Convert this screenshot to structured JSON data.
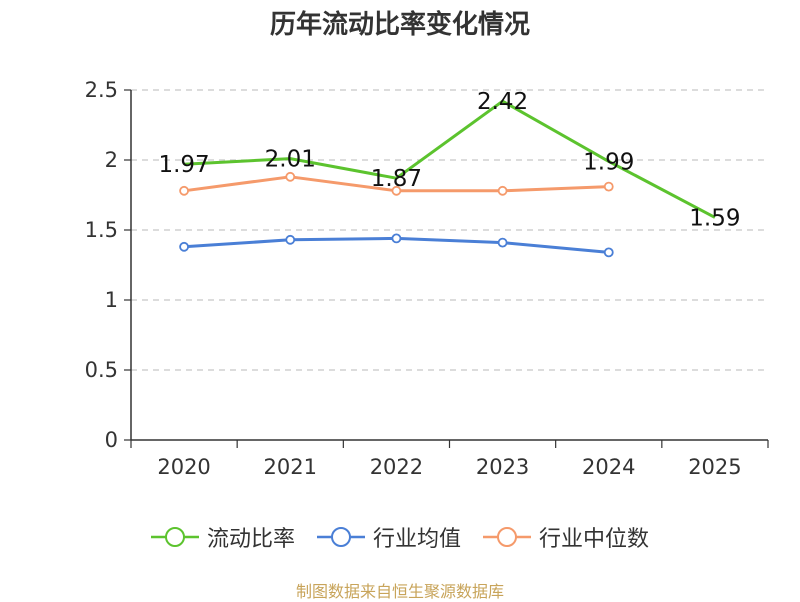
{
  "chart_data": {
    "type": "line",
    "title": "历年流动比率变化情况",
    "categories": [
      "2020",
      "2021",
      "2022",
      "2023",
      "2024",
      "2025"
    ],
    "ylim": [
      0,
      2.5
    ],
    "yticks": [
      "0",
      "0.5",
      "1",
      "1.5",
      "2",
      "2.5"
    ],
    "grid": true,
    "legend_position": "bottom",
    "series": [
      {
        "name": "流动比率",
        "color": "#5cc32e",
        "values": [
          1.97,
          2.01,
          1.87,
          2.42,
          1.99,
          1.59
        ],
        "labels": [
          "1.97",
          "2.01",
          "1.87",
          "2.42",
          "1.99",
          "1.59"
        ]
      },
      {
        "name": "行业均值",
        "color": "#4a7fd6",
        "values": [
          1.38,
          1.43,
          1.44,
          1.41,
          1.34,
          null
        ]
      },
      {
        "name": "行业中位数",
        "color": "#f59a6b",
        "values": [
          1.78,
          1.88,
          1.78,
          1.78,
          1.81,
          null
        ]
      }
    ]
  },
  "source_text": "制图数据来自恒生聚源数据库"
}
